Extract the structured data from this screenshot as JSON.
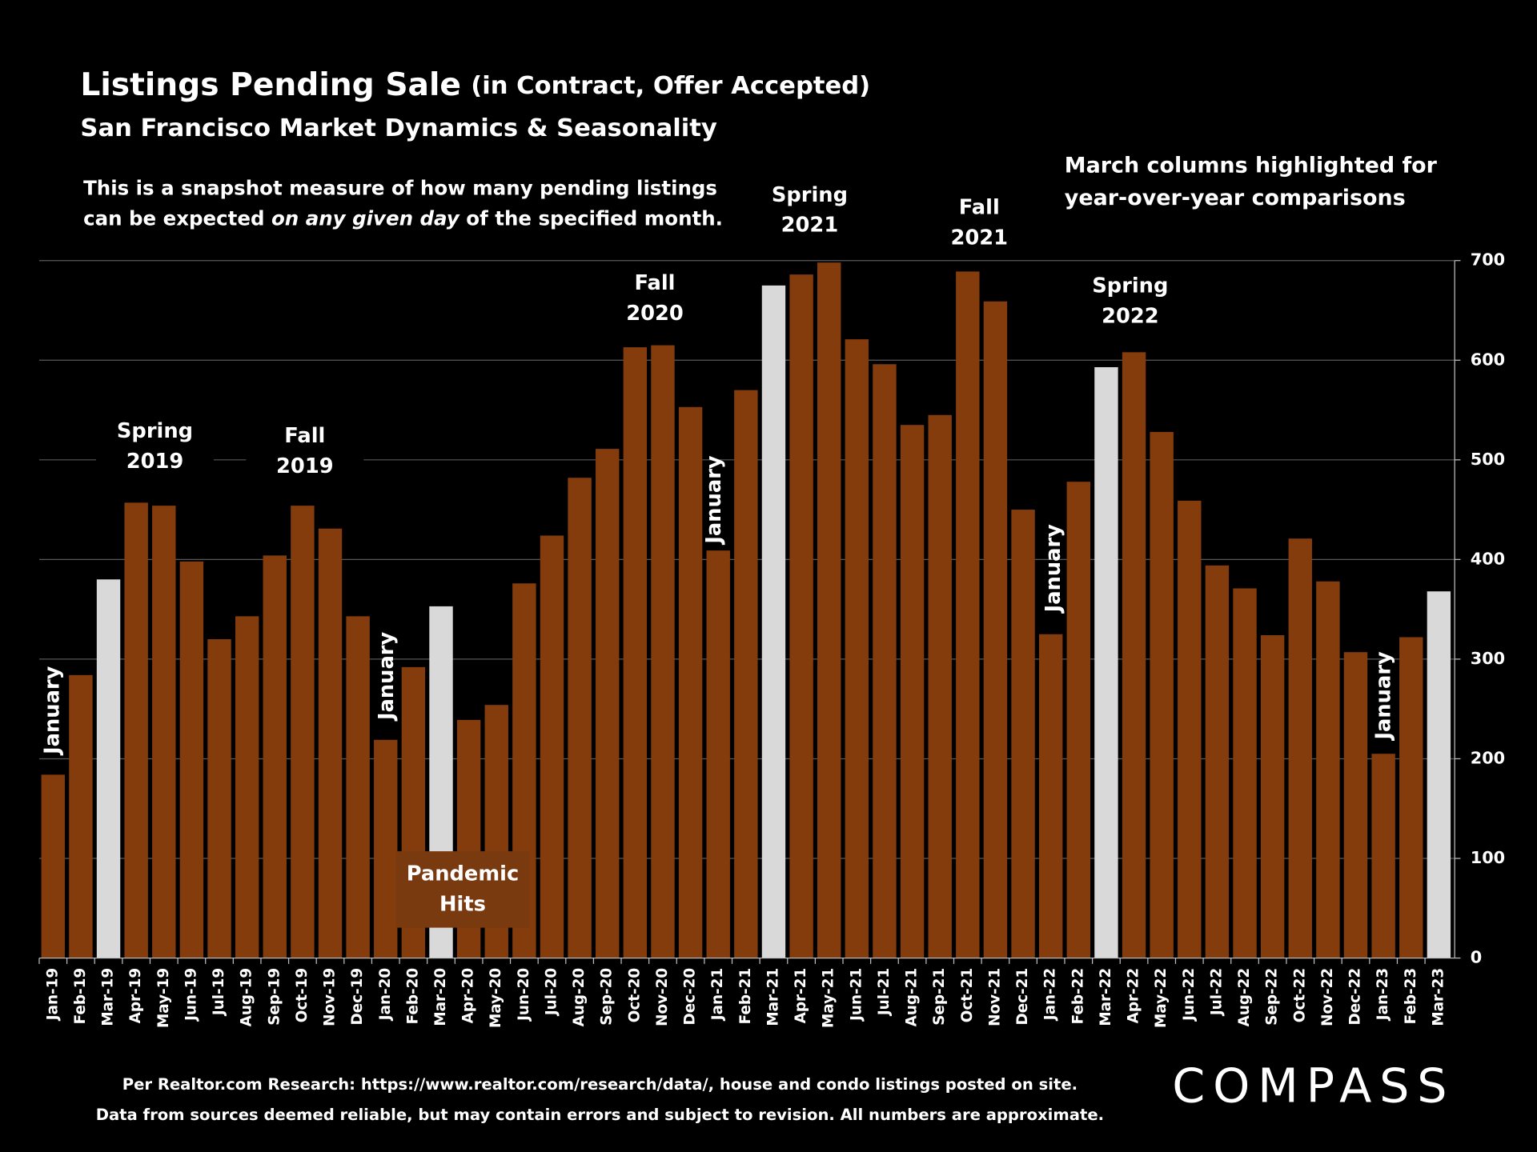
{
  "chart_data": {
    "type": "bar",
    "title": "Listings Pending Sale",
    "title_suffix": "(in Contract, Offer Accepted)",
    "subtitle": "San Francisco Market Dynamics & Seasonality",
    "note": [
      "This is a snapshot measure of how many pending listings",
      "can be expected ",
      "on any given day",
      " of the specified month."
    ],
    "highlight_note": [
      "March columns highlighted for",
      "year-over-year comparisons"
    ],
    "categories": [
      "Jan-19",
      "Feb-19",
      "Mar-19",
      "Apr-19",
      "May-19",
      "Jun-19",
      "Jul-19",
      "Aug-19",
      "Sep-19",
      "Oct-19",
      "Nov-19",
      "Dec-19",
      "Jan-20",
      "Feb-20",
      "Mar-20",
      "Apr-20",
      "May-20",
      "Jun-20",
      "Jul-20",
      "Aug-20",
      "Sep-20",
      "Oct-20",
      "Nov-20",
      "Dec-20",
      "Jan-21",
      "Feb-21",
      "Mar-21",
      "Apr-21",
      "May-21",
      "Jun-21",
      "Jul-21",
      "Aug-21",
      "Sep-21",
      "Oct-21",
      "Nov-21",
      "Dec-21",
      "Jan-22",
      "Feb-22",
      "Mar-22",
      "Apr-22",
      "May-22",
      "Jun-22",
      "Jul-22",
      "Aug-22",
      "Sep-22",
      "Oct-22",
      "Nov-22",
      "Dec-22",
      "Jan-23",
      "Feb-23",
      "Mar-23"
    ],
    "values": [
      184,
      284,
      380,
      457,
      454,
      398,
      320,
      343,
      404,
      454,
      431,
      343,
      219,
      292,
      353,
      239,
      254,
      376,
      424,
      482,
      511,
      613,
      615,
      553,
      409,
      570,
      675,
      686,
      698,
      621,
      596,
      535,
      545,
      689,
      659,
      450,
      325,
      478,
      593,
      608,
      528,
      459,
      394,
      371,
      324,
      421,
      378,
      307,
      205,
      322,
      368
    ],
    "colors": [
      "#843c0c",
      "#843c0c",
      "#d9d9d9",
      "#843c0c",
      "#843c0c",
      "#843c0c",
      "#843c0c",
      "#843c0c",
      "#843c0c",
      "#843c0c",
      "#843c0c",
      "#843c0c",
      "#843c0c",
      "#843c0c",
      "#d9d9d9",
      "#843c0c",
      "#843c0c",
      "#843c0c",
      "#843c0c",
      "#843c0c",
      "#843c0c",
      "#843c0c",
      "#843c0c",
      "#843c0c",
      "#843c0c",
      "#843c0c",
      "#d9d9d9",
      "#843c0c",
      "#843c0c",
      "#843c0c",
      "#843c0c",
      "#843c0c",
      "#843c0c",
      "#843c0c",
      "#843c0c",
      "#843c0c",
      "#843c0c",
      "#843c0c",
      "#d9d9d9",
      "#843c0c",
      "#843c0c",
      "#843c0c",
      "#843c0c",
      "#843c0c",
      "#843c0c",
      "#843c0c",
      "#843c0c",
      "#843c0c",
      "#843c0c",
      "#843c0c",
      "#d9d9d9"
    ],
    "ylim": [
      0,
      700
    ],
    "yticks": [
      0,
      100,
      200,
      300,
      400,
      500,
      600,
      700
    ],
    "grid": true,
    "annotations": [
      [
        "January"
      ],
      [
        "Spring",
        "2019"
      ],
      [
        "Fall",
        "2019"
      ],
      [
        "January"
      ],
      [
        "Pandemic",
        "Hits"
      ],
      [
        "Fall",
        "2020"
      ],
      [
        "January"
      ],
      [
        "Spring",
        "2021"
      ],
      [
        "Fall",
        "2021"
      ],
      [
        "January"
      ],
      [
        "Spring",
        "2022"
      ],
      [
        "January"
      ]
    ],
    "footer": [
      "Per Realtor.com Research:  https://www.realtor.com/research/data/, house and condo listings posted on site.",
      "Data from sources deemed reliable, but may contain errors and subject to revision. All numbers are approximate."
    ],
    "logo": "COMPASS"
  }
}
